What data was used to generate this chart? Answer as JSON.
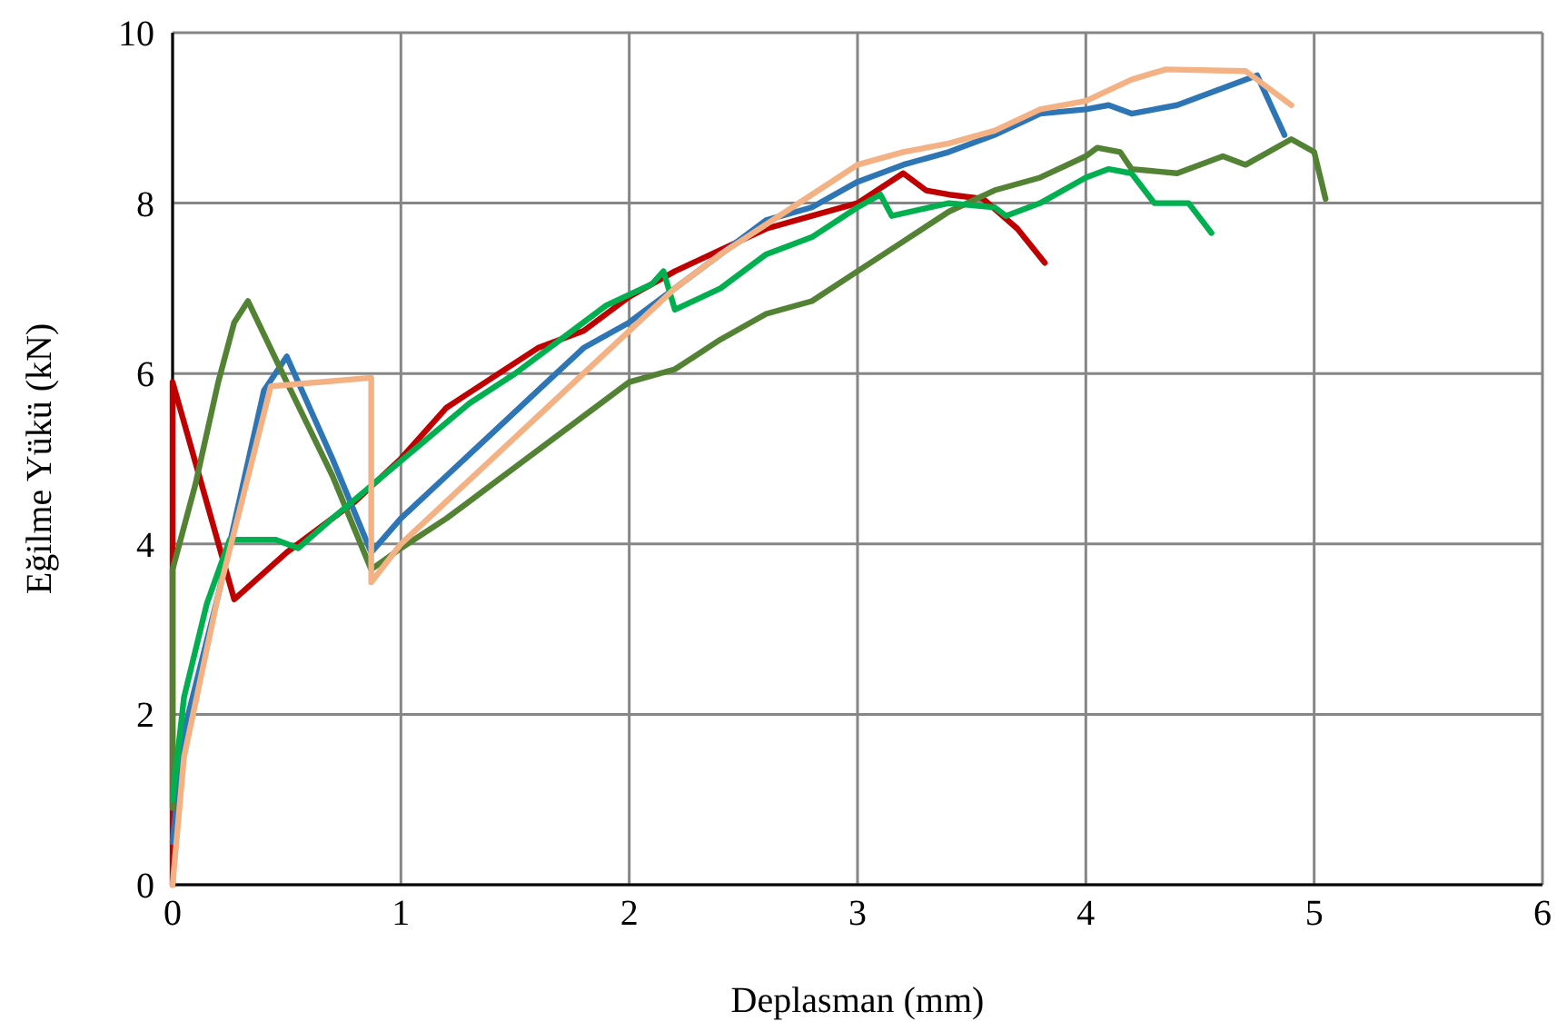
{
  "chart_data": {
    "type": "line",
    "xlabel": "Deplasman (mm)",
    "ylabel": "Eğilme Yükü (kN)",
    "xlim": [
      0,
      6
    ],
    "ylim": [
      0,
      10
    ],
    "xticks": [
      0,
      1,
      2,
      3,
      4,
      5,
      6
    ],
    "yticks": [
      0,
      2,
      4,
      6,
      8,
      10
    ],
    "grid": true,
    "marker": "none",
    "line_style": "solid",
    "series": [
      {
        "color": "#c00000",
        "x": [
          0,
          0,
          0.27,
          0.5,
          0.8,
          1.0,
          1.2,
          1.4,
          1.6,
          1.8,
          2.0,
          2.2,
          2.4,
          2.6,
          2.8,
          3.0,
          3.2,
          3.3,
          3.4,
          3.55,
          3.7,
          3.82
        ],
        "values": [
          0,
          5.9,
          3.35,
          3.9,
          4.5,
          5.0,
          5.6,
          5.95,
          6.3,
          6.5,
          6.9,
          7.2,
          7.45,
          7.7,
          7.85,
          8.0,
          8.35,
          8.15,
          8.1,
          8.05,
          7.7,
          7.3
        ]
      },
      {
        "color": "#2e75b6",
        "x": [
          0,
          0.05,
          0.2,
          0.4,
          0.5,
          0.7,
          0.87,
          1.0,
          1.2,
          1.4,
          1.6,
          1.8,
          2.0,
          2.2,
          2.4,
          2.6,
          2.8,
          3.0,
          3.2,
          3.4,
          3.6,
          3.8,
          4.0,
          4.1,
          4.2,
          4.4,
          4.6,
          4.75,
          4.87
        ],
        "values": [
          0.5,
          1.8,
          3.4,
          5.8,
          6.2,
          5.0,
          3.9,
          4.3,
          4.8,
          5.3,
          5.8,
          6.3,
          6.6,
          7.0,
          7.4,
          7.8,
          7.95,
          8.25,
          8.45,
          8.6,
          8.8,
          9.05,
          9.1,
          9.15,
          9.05,
          9.15,
          9.35,
          9.5,
          8.8
        ]
      },
      {
        "color": "#548235",
        "x": [
          0,
          0,
          0.1,
          0.2,
          0.27,
          0.33,
          0.5,
          0.7,
          0.87,
          1.0,
          1.2,
          1.4,
          1.6,
          1.8,
          2.0,
          2.2,
          2.4,
          2.6,
          2.8,
          3.0,
          3.2,
          3.4,
          3.6,
          3.8,
          4.0,
          4.05,
          4.15,
          4.2,
          4.4,
          4.6,
          4.7,
          4.9,
          5.0,
          5.05
        ],
        "values": [
          0.9,
          3.7,
          4.7,
          5.9,
          6.6,
          6.85,
          5.9,
          4.8,
          3.7,
          3.95,
          4.3,
          4.7,
          5.1,
          5.5,
          5.9,
          6.05,
          6.4,
          6.7,
          6.85,
          7.2,
          7.55,
          7.9,
          8.15,
          8.3,
          8.55,
          8.65,
          8.6,
          8.4,
          8.35,
          8.55,
          8.45,
          8.75,
          8.6,
          8.05
        ]
      },
      {
        "color": "#00b050",
        "x": [
          0,
          0.05,
          0.15,
          0.25,
          0.45,
          0.55,
          0.7,
          0.9,
          1.1,
          1.3,
          1.5,
          1.7,
          1.9,
          2.1,
          2.15,
          2.2,
          2.4,
          2.6,
          2.8,
          3.0,
          3.1,
          3.15,
          3.4,
          3.6,
          3.65,
          3.8,
          4.0,
          4.1,
          4.2,
          4.3,
          4.45,
          4.55
        ],
        "values": [
          1.0,
          2.2,
          3.3,
          4.05,
          4.05,
          3.95,
          4.3,
          4.75,
          5.2,
          5.65,
          6.0,
          6.4,
          6.8,
          7.05,
          7.2,
          6.75,
          7.0,
          7.4,
          7.6,
          7.95,
          8.1,
          7.85,
          8.0,
          7.95,
          7.85,
          8.0,
          8.3,
          8.4,
          8.35,
          8.0,
          8.0,
          7.65
        ]
      },
      {
        "color": "#f4b183",
        "x": [
          0,
          0.05,
          0.2,
          0.43,
          0.87,
          0.87,
          1.0,
          1.2,
          1.4,
          1.6,
          1.8,
          2.0,
          2.2,
          2.4,
          2.6,
          2.8,
          3.0,
          3.2,
          3.4,
          3.6,
          3.8,
          4.0,
          4.2,
          4.35,
          4.7,
          4.9
        ],
        "values": [
          0,
          1.5,
          3.4,
          5.85,
          5.95,
          3.55,
          4.0,
          4.5,
          5.0,
          5.5,
          6.0,
          6.5,
          7.0,
          7.4,
          7.75,
          8.1,
          8.45,
          8.6,
          8.7,
          8.85,
          9.1,
          9.2,
          9.45,
          9.57,
          9.55,
          9.15
        ]
      }
    ]
  }
}
